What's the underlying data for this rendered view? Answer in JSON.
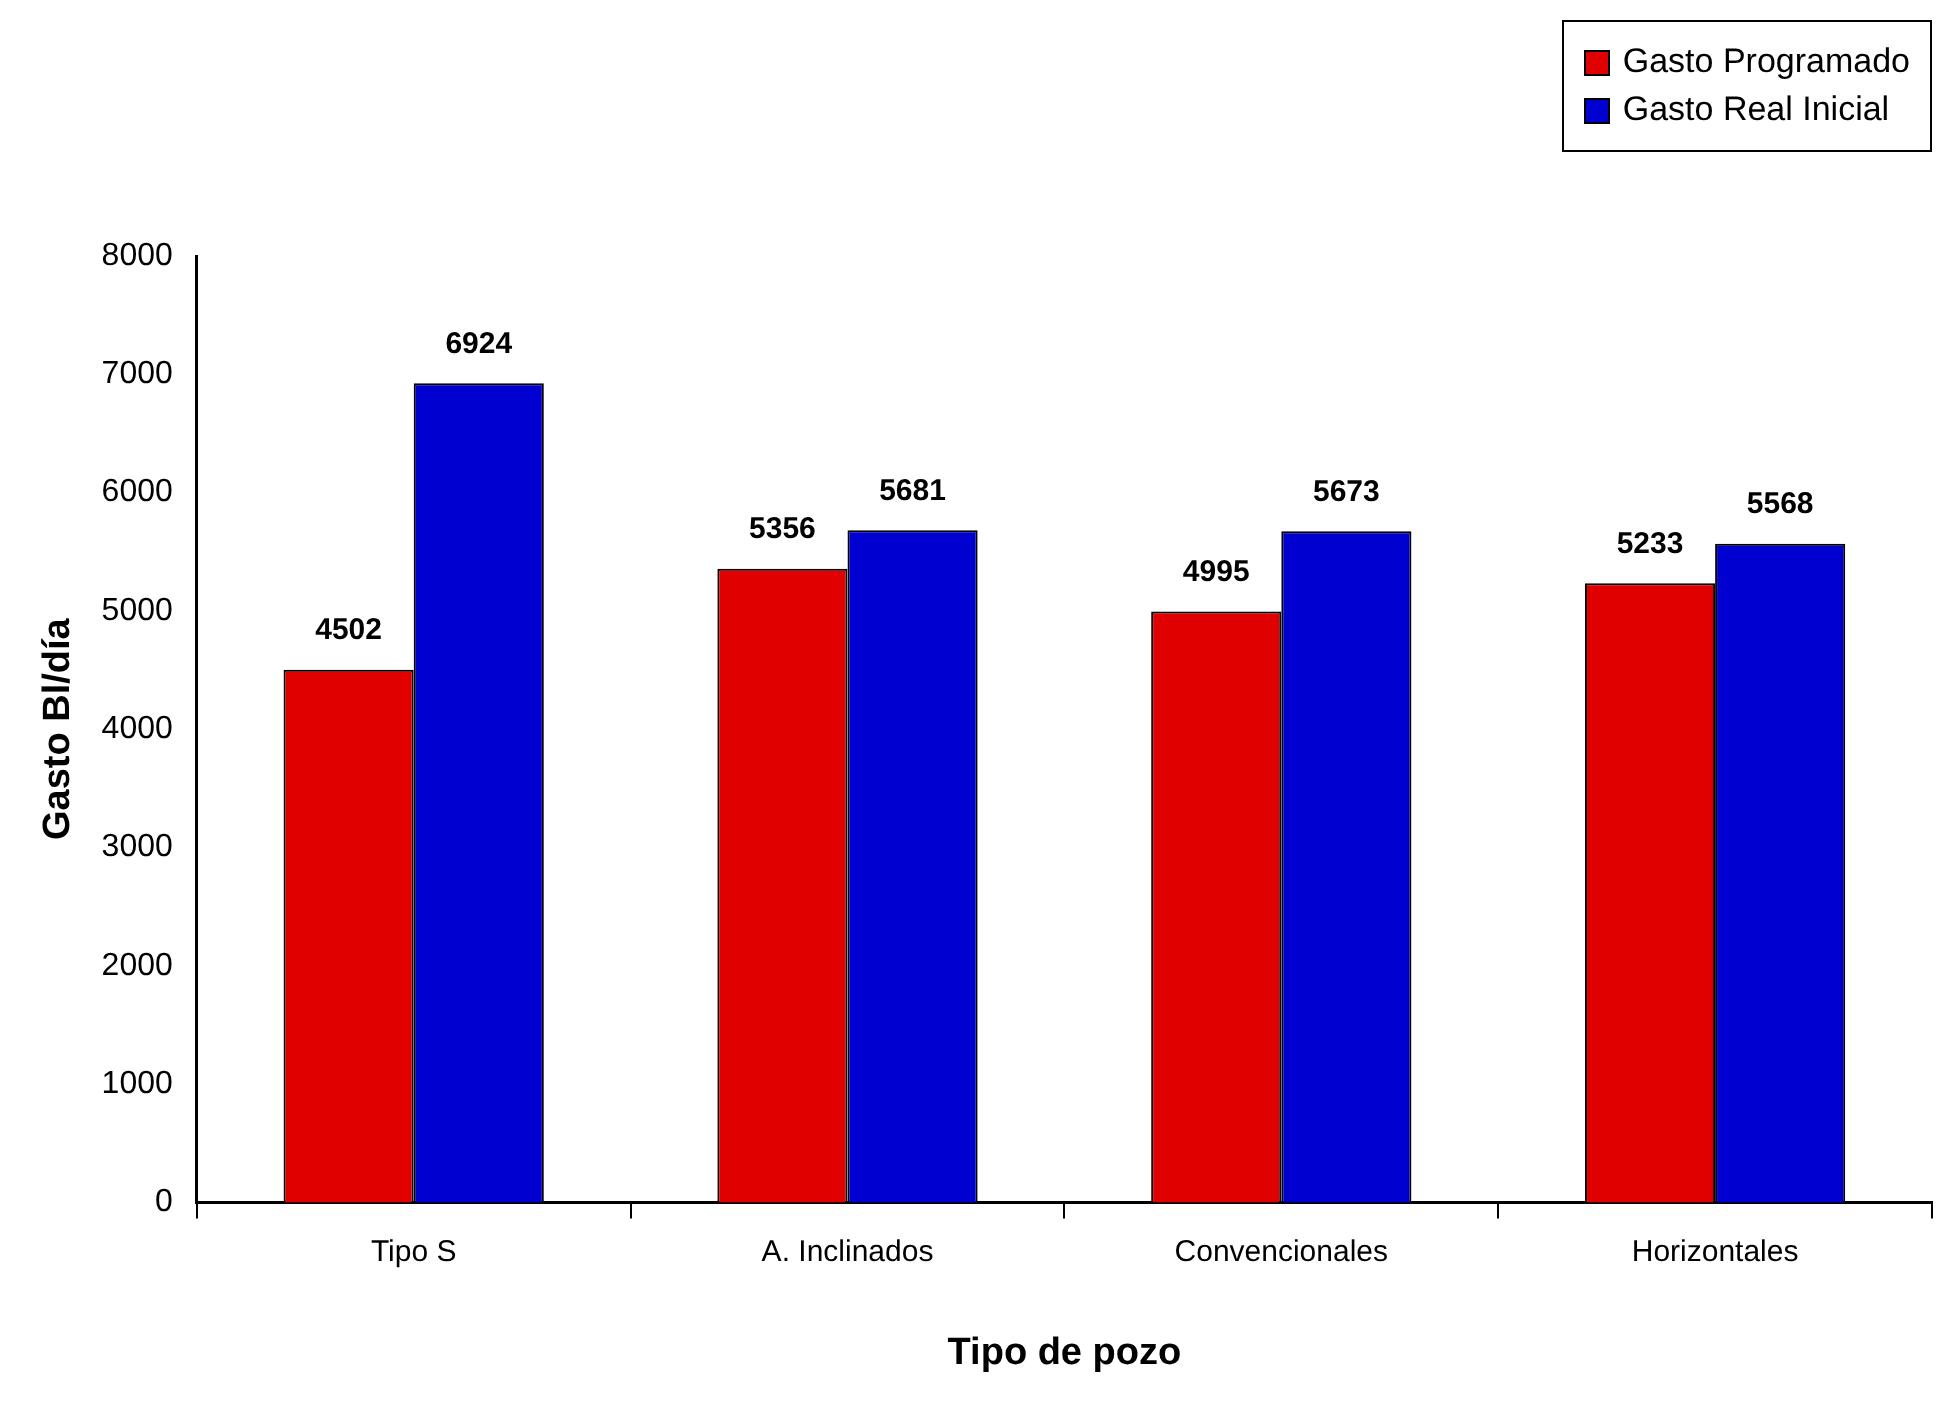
{
  "chart_data": {
    "type": "bar",
    "xlabel": "Tipo de pozo",
    "ylabel": "Gasto Bl/día",
    "categories": [
      "Tipo S",
      "A. Inclinados",
      "Convencionales",
      "Horizontales"
    ],
    "series": [
      {
        "name": "Gasto Programado",
        "color": "#e00000",
        "values": [
          4502,
          5356,
          4995,
          5233
        ]
      },
      {
        "name": "Gasto Real Inicial",
        "color": "#0000d0",
        "values": [
          6924,
          5681,
          5673,
          5568
        ]
      }
    ],
    "ylim": [
      0,
      8000
    ],
    "yticks": [
      0,
      1000,
      2000,
      3000,
      4000,
      5000,
      6000,
      7000,
      8000
    ],
    "grid": false,
    "legend": "top right",
    "data_labels": true
  }
}
